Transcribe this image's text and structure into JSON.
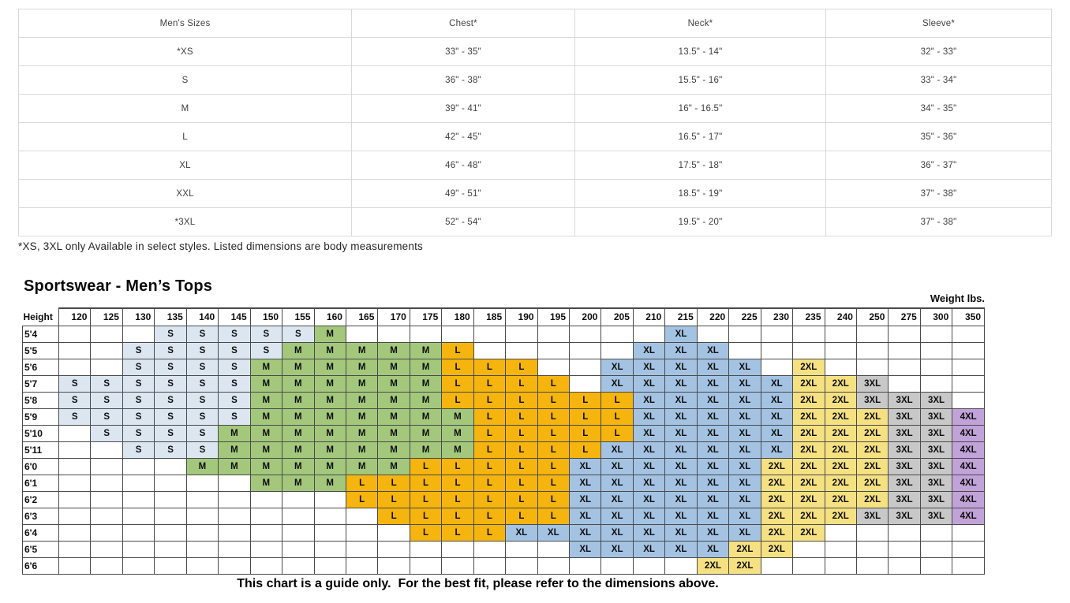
{
  "size_table": {
    "columns": [
      "Men's Sizes",
      "Chest*",
      "Neck*",
      "Sleeve*"
    ],
    "rows": [
      [
        "*XS",
        "33\" - 35\"",
        "13.5\" - 14\"",
        "32\" - 33\""
      ],
      [
        "S",
        "36\" - 38\"",
        "15.5\" - 16\"",
        "33\" - 34\""
      ],
      [
        "M",
        "39\" - 41\"",
        "16\" - 16.5\"",
        "34\" - 35\""
      ],
      [
        "L",
        "42\" - 45\"",
        "16.5\" - 17\"",
        "35\" - 36\""
      ],
      [
        "XL",
        "46\" - 48\"",
        "17.5\" - 18\"",
        "36\" - 37\""
      ],
      [
        "XXL",
        "49\" - 51\"",
        "18.5\" - 19\"",
        "37\" - 38\""
      ],
      [
        "*3XL",
        "52\" - 54\"",
        "19.5\" - 20\"",
        "37\" - 38\""
      ]
    ],
    "footnote": "*XS, 3XL only Available in select styles. Listed dimensions are body measurements"
  },
  "fit_chart": {
    "title": "Sportswear - Men’s Tops",
    "weight_label": "Weight lbs.",
    "height_label": "Height",
    "caption": "This chart is a guide only.  For the best fit, please refer to the dimensions above.",
    "weights": [
      "120",
      "125",
      "130",
      "135",
      "140",
      "145",
      "150",
      "155",
      "160",
      "165",
      "170",
      "175",
      "180",
      "185",
      "190",
      "195",
      "200",
      "205",
      "210",
      "215",
      "220",
      "225",
      "230",
      "235",
      "240",
      "250",
      "275",
      "300",
      "350"
    ],
    "size_colors": {
      "S": "#dce6f1",
      "M": "#a3c87c",
      "L": "#f5b40e",
      "XL": "#a4c3e3",
      "2XL": "#f6e182",
      "3XL": "#c8c8c8",
      "4XL": "#c2a3d9"
    },
    "rows": [
      {
        "height": "5'4",
        "cells": [
          "",
          "",
          "",
          "S",
          "S",
          "S",
          "S",
          "S",
          "M",
          "",
          "",
          "",
          "",
          "",
          "",
          "",
          "",
          "",
          "",
          "XL",
          "",
          "",
          "",
          "",
          "",
          "",
          "",
          "",
          ""
        ]
      },
      {
        "height": "5'5",
        "cells": [
          "",
          "",
          "S",
          "S",
          "S",
          "S",
          "S",
          "M",
          "M",
          "M",
          "M",
          "M",
          "L",
          "",
          "",
          "",
          "",
          "",
          "XL",
          "XL",
          "XL",
          "",
          "",
          "",
          "",
          "",
          "",
          "",
          ""
        ]
      },
      {
        "height": "5'6",
        "cells": [
          "",
          "",
          "S",
          "S",
          "S",
          "S",
          "M",
          "M",
          "M",
          "M",
          "M",
          "M",
          "L",
          "L",
          "L",
          "",
          "",
          "XL",
          "XL",
          "XL",
          "XL",
          "XL",
          "",
          "2XL",
          "",
          "",
          "",
          "",
          ""
        ]
      },
      {
        "height": "5'7",
        "cells": [
          "S",
          "S",
          "S",
          "S",
          "S",
          "S",
          "M",
          "M",
          "M",
          "M",
          "M",
          "M",
          "L",
          "L",
          "L",
          "L",
          "",
          "XL",
          "XL",
          "XL",
          "XL",
          "XL",
          "XL",
          "2XL",
          "2XL",
          "3XL",
          "",
          "",
          ""
        ]
      },
      {
        "height": "5'8",
        "cells": [
          "S",
          "S",
          "S",
          "S",
          "S",
          "S",
          "M",
          "M",
          "M",
          "M",
          "M",
          "M",
          "L",
          "L",
          "L",
          "L",
          "L",
          "L",
          "XL",
          "XL",
          "XL",
          "XL",
          "XL",
          "2XL",
          "2XL",
          "3XL",
          "3XL",
          "3XL",
          ""
        ]
      },
      {
        "height": "5'9",
        "cells": [
          "S",
          "S",
          "S",
          "S",
          "S",
          "S",
          "M",
          "M",
          "M",
          "M",
          "M",
          "M",
          "M",
          "L",
          "L",
          "L",
          "L",
          "L",
          "XL",
          "XL",
          "XL",
          "XL",
          "XL",
          "2XL",
          "2XL",
          "2XL",
          "3XL",
          "3XL",
          "4XL"
        ]
      },
      {
        "height": "5'10",
        "cells": [
          "",
          "S",
          "S",
          "S",
          "S",
          "M",
          "M",
          "M",
          "M",
          "M",
          "M",
          "M",
          "M",
          "L",
          "L",
          "L",
          "L",
          "L",
          "XL",
          "XL",
          "XL",
          "XL",
          "XL",
          "2XL",
          "2XL",
          "2XL",
          "3XL",
          "3XL",
          "4XL"
        ]
      },
      {
        "height": "5'11",
        "cells": [
          "",
          "",
          "S",
          "S",
          "S",
          "M",
          "M",
          "M",
          "M",
          "M",
          "M",
          "M",
          "M",
          "L",
          "L",
          "L",
          "L",
          "XL",
          "XL",
          "XL",
          "XL",
          "XL",
          "XL",
          "2XL",
          "2XL",
          "2XL",
          "3XL",
          "3XL",
          "4XL"
        ]
      },
      {
        "height": "6'0",
        "cells": [
          "",
          "",
          "",
          "",
          "M",
          "M",
          "M",
          "M",
          "M",
          "M",
          "M",
          "L",
          "L",
          "L",
          "L",
          "L",
          "XL",
          "XL",
          "XL",
          "XL",
          "XL",
          "XL",
          "2XL",
          "2XL",
          "2XL",
          "2XL",
          "3XL",
          "3XL",
          "4XL"
        ]
      },
      {
        "height": "6'1",
        "cells": [
          "",
          "",
          "",
          "",
          "",
          "",
          "M",
          "M",
          "M",
          "L",
          "L",
          "L",
          "L",
          "L",
          "L",
          "L",
          "XL",
          "XL",
          "XL",
          "XL",
          "XL",
          "XL",
          "2XL",
          "2XL",
          "2XL",
          "2XL",
          "3XL",
          "3XL",
          "4XL"
        ]
      },
      {
        "height": "6'2",
        "cells": [
          "",
          "",
          "",
          "",
          "",
          "",
          "",
          "",
          "",
          "L",
          "L",
          "L",
          "L",
          "L",
          "L",
          "L",
          "XL",
          "XL",
          "XL",
          "XL",
          "XL",
          "XL",
          "2XL",
          "2XL",
          "2XL",
          "2XL",
          "3XL",
          "3XL",
          "4XL"
        ]
      },
      {
        "height": "6'3",
        "cells": [
          "",
          "",
          "",
          "",
          "",
          "",
          "",
          "",
          "",
          "",
          "L",
          "L",
          "L",
          "L",
          "L",
          "L",
          "XL",
          "XL",
          "XL",
          "XL",
          "XL",
          "XL",
          "2XL",
          "2XL",
          "2XL",
          "3XL",
          "3XL",
          "3XL",
          "4XL"
        ]
      },
      {
        "height": "6'4",
        "cells": [
          "",
          "",
          "",
          "",
          "",
          "",
          "",
          "",
          "",
          "",
          "",
          "L",
          "L",
          "L",
          "XL",
          "XL",
          "XL",
          "XL",
          "XL",
          "XL",
          "XL",
          "XL",
          "2XL",
          "2XL",
          "",
          "",
          "",
          "",
          ""
        ]
      },
      {
        "height": "6'5",
        "cells": [
          "",
          "",
          "",
          "",
          "",
          "",
          "",
          "",
          "",
          "",
          "",
          "",
          "",
          "",
          "",
          "",
          "XL",
          "XL",
          "XL",
          "XL",
          "XL",
          "2XL",
          "2XL",
          "",
          "",
          "",
          "",
          "",
          ""
        ]
      },
      {
        "height": "6'6",
        "cells": [
          "",
          "",
          "",
          "",
          "",
          "",
          "",
          "",
          "",
          "",
          "",
          "",
          "",
          "",
          "",
          "",
          "",
          "",
          "",
          "",
          "2XL",
          "2XL",
          "",
          "",
          "",
          "",
          "",
          "",
          ""
        ]
      }
    ]
  }
}
